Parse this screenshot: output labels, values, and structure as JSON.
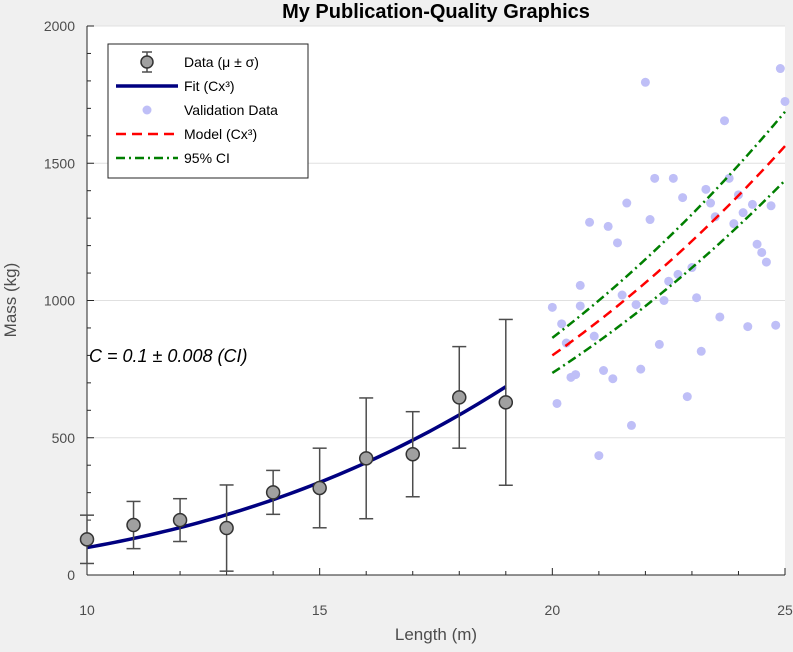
{
  "chart_data": {
    "type": "scatter",
    "title": "My Publication-Quality Graphics",
    "xlabel": "Length (m)",
    "ylabel": "Mass (kg)",
    "xlim": [
      10,
      25
    ],
    "ylim": [
      0,
      2000
    ],
    "x_ticks": [
      10,
      15,
      20,
      25
    ],
    "y_ticks": [
      0,
      500,
      1000,
      1500,
      2000
    ],
    "grid": "horizontal",
    "legend_position": "top-left",
    "annotation": "C = 0.1 ± 0.008 (CI)",
    "legend": [
      {
        "key": "data",
        "label": "Data (μ ± σ)"
      },
      {
        "key": "fit",
        "label": "Fit (Cx³)"
      },
      {
        "key": "validation",
        "label": "Validation Data"
      },
      {
        "key": "model",
        "label": "Model (Cx³)"
      },
      {
        "key": "ci",
        "label": "95% CI"
      }
    ],
    "series": [
      {
        "name": "Data (μ ± σ)",
        "kind": "errorbar",
        "color": "#a0a0a0",
        "x": [
          10,
          11,
          12,
          13,
          14,
          15,
          16,
          17,
          18,
          19
        ],
        "y": [
          130,
          182,
          200,
          171,
          301,
          317,
          425,
          440,
          647,
          629
        ],
        "err": [
          88,
          86,
          78,
          157,
          80,
          145,
          220,
          155,
          185,
          302
        ]
      },
      {
        "name": "Fit (Cx³)",
        "kind": "line",
        "color": "#000080",
        "coefficient": 0.1,
        "x_range": [
          10,
          19
        ]
      },
      {
        "name": "Validation Data",
        "kind": "scatter",
        "color": "#bfbff7",
        "x": [
          20.0,
          20.1,
          20.3,
          20.2,
          20.4,
          20.5,
          20.6,
          20.6,
          20.8,
          20.9,
          21.0,
          21.1,
          21.2,
          21.3,
          21.4,
          21.5,
          21.6,
          21.7,
          21.8,
          21.9,
          22.0,
          22.1,
          22.2,
          22.3,
          22.4,
          22.5,
          22.6,
          22.7,
          22.8,
          22.9,
          23.0,
          23.1,
          23.2,
          23.3,
          23.4,
          23.5,
          23.6,
          23.7,
          23.8,
          23.9,
          24.0,
          24.1,
          24.2,
          24.3,
          24.4,
          24.5,
          24.6,
          24.7,
          24.8,
          24.9,
          25.0
        ],
        "y": [
          975,
          625,
          845,
          915,
          720,
          730,
          980,
          1055,
          1285,
          870,
          435,
          745,
          1270,
          715,
          1210,
          1020,
          1355,
          545,
          985,
          750,
          1795,
          1295,
          1445,
          840,
          1000,
          1070,
          1445,
          1095,
          1375,
          650,
          1120,
          1010,
          815,
          1405,
          1355,
          1305,
          940,
          1655,
          1445,
          1280,
          1385,
          1320,
          905,
          1350,
          1205,
          1175,
          1140,
          1345,
          910,
          1845,
          1725
        ]
      },
      {
        "name": "Model (Cx³)",
        "kind": "line",
        "color": "#ff0000",
        "coefficient": 0.1,
        "x_range": [
          20,
          25
        ]
      },
      {
        "name": "95% CI",
        "kind": "band",
        "color": "#007f00",
        "coefficient_lower": 0.092,
        "coefficient_upper": 0.108,
        "x_range": [
          20,
          25
        ]
      }
    ]
  }
}
